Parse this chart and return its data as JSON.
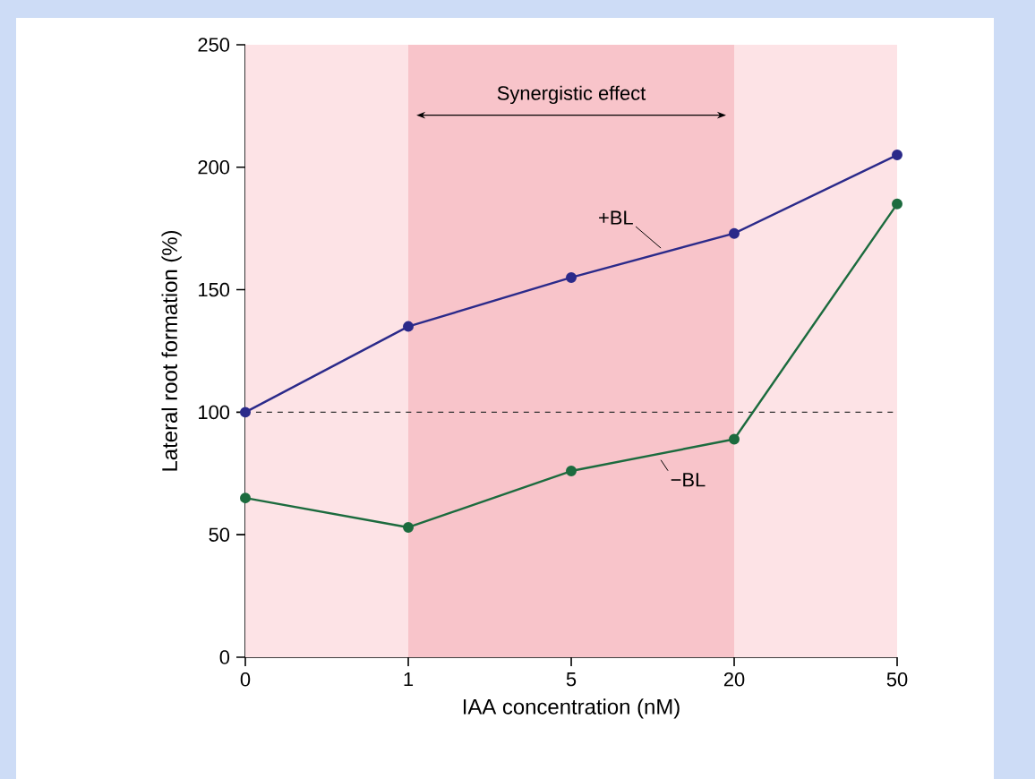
{
  "chart_data": {
    "type": "line",
    "xlabel": "IAA concentration (nM)",
    "ylabel": "Lateral root formation (%)",
    "categories": [
      "0",
      "1",
      "5",
      "20",
      "50"
    ],
    "series": [
      {
        "name": "+BL",
        "color": "#2b2a8a",
        "values": [
          100,
          135,
          155,
          173,
          205
        ]
      },
      {
        "name": "−BL",
        "color": "#1c6b3e",
        "values": [
          65,
          53,
          76,
          89,
          185
        ]
      }
    ],
    "ylim": [
      0,
      250
    ],
    "yticks": [
      0,
      50,
      100,
      150,
      200,
      250
    ],
    "ref_lines": [
      {
        "axis": "y",
        "value": 100,
        "color": "#333333",
        "line_style": "dashed"
      }
    ],
    "bands": [
      {
        "axis": "x",
        "from": "1",
        "to": "20",
        "label": "Synergistic effect",
        "color": "#f8c4ca"
      }
    ],
    "marker": "circle",
    "line_style": "solid",
    "legend": false,
    "grid": false
  }
}
